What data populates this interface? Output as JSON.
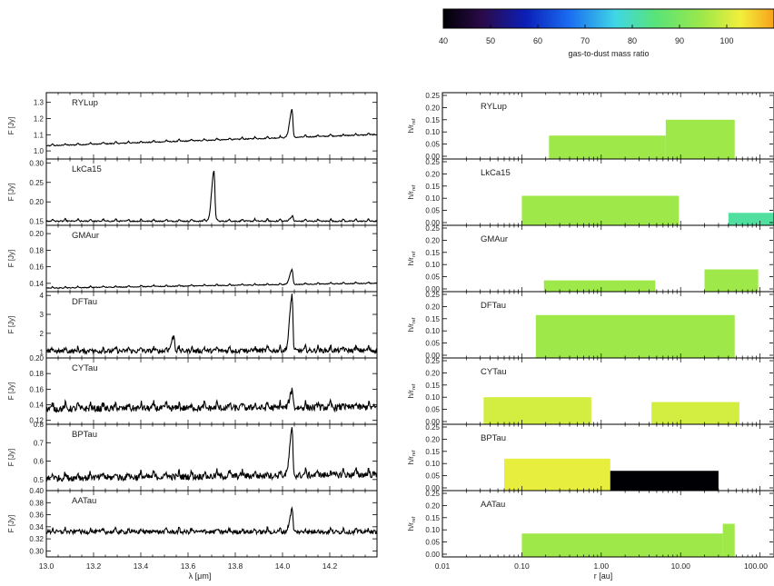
{
  "colorbar": {
    "label": "gas-to-dust mass ratio",
    "ticks": [
      40,
      50,
      60,
      70,
      80,
      90,
      100
    ],
    "range": [
      40,
      110
    ],
    "colormap": "viridis-like: black-purple-blue-cyan-green-yellow-orange"
  },
  "left_panels": {
    "xlabel": "λ [μm]",
    "ylabel": "F [Jy]",
    "xlim": [
      13.0,
      14.4
    ],
    "xticks": [
      "13.0",
      "13.2",
      "13.4",
      "13.6",
      "13.8",
      "14.0",
      "14.2"
    ]
  },
  "right_panels": {
    "xlabel": "r [au]",
    "ylabel": "h/r",
    "ylabel_sub": "ref",
    "xscale": "log",
    "xlim": [
      0.01,
      150
    ],
    "xticks": [
      "0.01",
      "0.10",
      "1.00",
      "10.00",
      "100.00"
    ],
    "yticks": [
      "0.00",
      "0.05",
      "0.10",
      "0.15",
      "0.20",
      "0.25"
    ]
  },
  "chart_data": [
    {
      "type": "line",
      "title": "RYLup",
      "xlabel": "λ [μm]",
      "ylabel": "F [Jy]",
      "ylim": [
        0.95,
        1.36
      ],
      "yticks": [
        "1.0",
        "1.1",
        "1.2",
        "1.3"
      ],
      "series": [
        {
          "baseline": [
            [
              13.0,
              1.03
            ],
            [
              14.4,
              1.1
            ]
          ],
          "peaks": [
            [
              14.04,
              1.25
            ]
          ],
          "noise": 0.02
        }
      ]
    },
    {
      "type": "line",
      "title": "LkCa15",
      "xlabel": "λ [μm]",
      "ylabel": "F [Jy]",
      "ylim": [
        0.14,
        0.31
      ],
      "yticks": [
        "0.15",
        "0.20",
        "0.25",
        "0.30"
      ],
      "series": [
        {
          "baseline": [
            [
              13.0,
              0.15
            ],
            [
              14.4,
              0.15
            ]
          ],
          "peaks": [
            [
              13.71,
              0.28
            ],
            [
              14.04,
              0.16
            ]
          ],
          "noise": 0.01
        }
      ]
    },
    {
      "type": "line",
      "title": "GMAur",
      "xlabel": "λ [μm]",
      "ylabel": "F [Jy]",
      "ylim": [
        0.13,
        0.21
      ],
      "yticks": [
        "0.14",
        "0.16",
        "0.18",
        "0.20"
      ],
      "series": [
        {
          "baseline": [
            [
              13.0,
              0.134
            ],
            [
              14.4,
              0.14
            ]
          ],
          "peaks": [
            [
              14.04,
              0.156
            ]
          ],
          "noise": 0.003
        }
      ]
    },
    {
      "type": "line",
      "title": "DFTau",
      "xlabel": "λ [μm]",
      "ylabel": "F [Jy]",
      "ylim": [
        0.7,
        4.2
      ],
      "yticks": [
        "1",
        "2",
        "3",
        "4"
      ],
      "series": [
        {
          "baseline": [
            [
              13.0,
              1.0
            ],
            [
              14.4,
              1.05
            ]
          ],
          "peaks": [
            [
              14.04,
              3.9
            ],
            [
              13.54,
              1.8
            ]
          ],
          "noise": 0.35
        }
      ]
    },
    {
      "type": "line",
      "title": "CYTau",
      "xlabel": "λ [μm]",
      "ylabel": "F [Jy]",
      "ylim": [
        0.115,
        0.2
      ],
      "yticks": [
        "0.12",
        "0.14",
        "0.16",
        "0.18",
        "0.20"
      ],
      "series": [
        {
          "baseline": [
            [
              13.0,
              0.133
            ],
            [
              14.4,
              0.135
            ]
          ],
          "peaks": [
            [
              14.04,
              0.155
            ]
          ],
          "noise": 0.012
        }
      ]
    },
    {
      "type": "line",
      "title": "BPTau",
      "xlabel": "λ [μm]",
      "ylabel": "F [Jy]",
      "ylim": [
        0.44,
        0.8
      ],
      "yticks": [
        "0.5",
        "0.6",
        "0.7",
        "0.8"
      ],
      "series": [
        {
          "baseline": [
            [
              13.0,
              0.5
            ],
            [
              14.4,
              0.52
            ]
          ],
          "peaks": [
            [
              14.04,
              0.75
            ]
          ],
          "noise": 0.05
        }
      ]
    },
    {
      "type": "line",
      "title": "AATau",
      "xlabel": "λ [μm]",
      "ylabel": "F [Jy]",
      "ylim": [
        0.29,
        0.4
      ],
      "yticks": [
        "0.30",
        "0.32",
        "0.34",
        "0.36",
        "0.38",
        "0.40"
      ],
      "series": [
        {
          "baseline": [
            [
              13.0,
              0.33
            ],
            [
              14.4,
              0.33
            ]
          ],
          "peaks": [
            [
              14.04,
              0.365
            ]
          ],
          "noise": 0.01
        }
      ]
    },
    {
      "type": "bar",
      "title": "RYLup",
      "xlabel": "r [au]",
      "ylabel": "h/r_ref",
      "ylim": [
        0,
        0.25
      ],
      "bars": [
        {
          "r_in": 0.22,
          "r_out": 6.5,
          "h": 0.085,
          "gas_to_dust": 95
        },
        {
          "r_in": 6.5,
          "r_out": 48,
          "h": 0.15,
          "gas_to_dust": 95
        }
      ]
    },
    {
      "type": "bar",
      "title": "LkCa15",
      "xlabel": "r [au]",
      "ylabel": "h/r_ref",
      "ylim": [
        0,
        0.25
      ],
      "bars": [
        {
          "r_in": 0.1,
          "r_out": 9.5,
          "h": 0.11,
          "gas_to_dust": 95
        },
        {
          "r_in": 40,
          "r_out": 150,
          "h": 0.04,
          "gas_to_dust": 82
        }
      ]
    },
    {
      "type": "bar",
      "title": "GMAur",
      "xlabel": "r [au]",
      "ylabel": "h/r_ref",
      "ylim": [
        0,
        0.25
      ],
      "bars": [
        {
          "r_in": 0.19,
          "r_out": 4.8,
          "h": 0.035,
          "gas_to_dust": 95
        },
        {
          "r_in": 20,
          "r_out": 95,
          "h": 0.08,
          "gas_to_dust": 95
        }
      ]
    },
    {
      "type": "bar",
      "title": "DFTau",
      "xlabel": "r [au]",
      "ylabel": "h/r_ref",
      "ylim": [
        0,
        0.25
      ],
      "bars": [
        {
          "r_in": 0.15,
          "r_out": 48,
          "h": 0.165,
          "gas_to_dust": 95
        }
      ]
    },
    {
      "type": "bar",
      "title": "CYTau",
      "xlabel": "r [au]",
      "ylabel": "h/r_ref",
      "ylim": [
        0,
        0.25
      ],
      "bars": [
        {
          "r_in": 0.033,
          "r_out": 0.75,
          "h": 0.1,
          "gas_to_dust": 100
        },
        {
          "r_in": 4.3,
          "r_out": 55,
          "h": 0.08,
          "gas_to_dust": 100
        }
      ]
    },
    {
      "type": "bar",
      "title": "BPTau",
      "xlabel": "r [au]",
      "ylabel": "h/r_ref",
      "ylim": [
        0,
        0.25
      ],
      "bars": [
        {
          "r_in": 0.06,
          "r_out": 1.3,
          "h": 0.12,
          "gas_to_dust": 102
        },
        {
          "r_in": 1.3,
          "r_out": 30,
          "h": 0.07,
          "gas_to_dust": 40
        }
      ]
    },
    {
      "type": "bar",
      "title": "AATau",
      "xlabel": "r [au]",
      "ylabel": "h/r_ref",
      "ylim": [
        0,
        0.25
      ],
      "bars": [
        {
          "r_in": 0.1,
          "r_out": 34,
          "h": 0.085,
          "gas_to_dust": 95
        },
        {
          "r_in": 34,
          "r_out": 48,
          "h": 0.125,
          "gas_to_dust": 95
        }
      ]
    }
  ]
}
